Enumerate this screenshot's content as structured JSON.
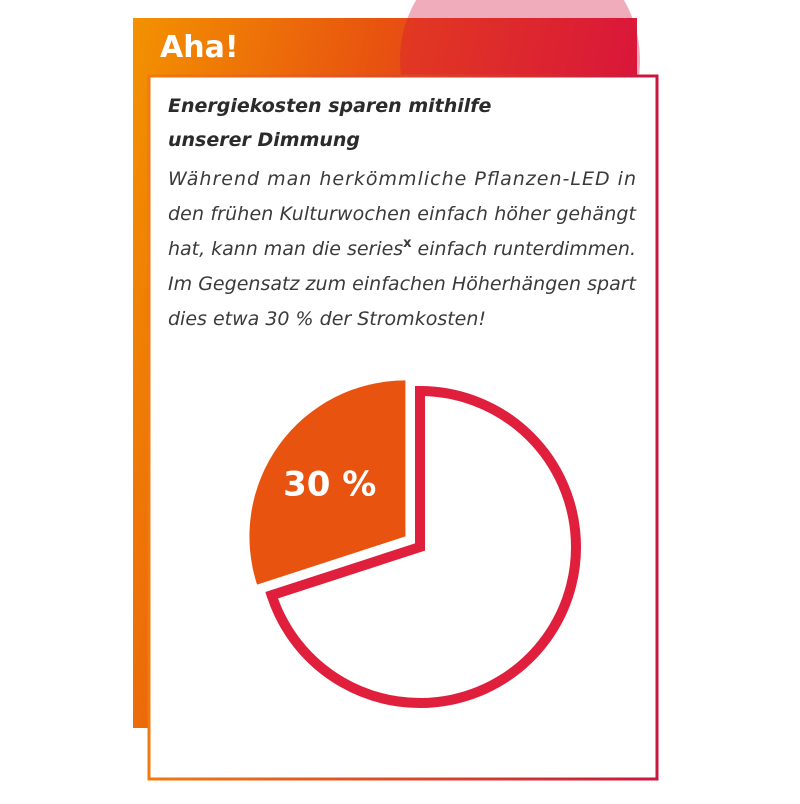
{
  "chart_data": {
    "type": "pie",
    "badge": "Aha!",
    "heading": [
      "Energiekosten sparen mithilfe",
      "unserer Dimmung"
    ],
    "body": [
      "Während man herkömmliche Pflanzen-LED in",
      "den frühen Kulturwochen einfach höher gehängt",
      {
        "before": "hat, kann man die series",
        "sup": "x",
        "after": " einfach runterdimmen."
      },
      "Im Gegensatz zum einfachen Höherhängen spart",
      "dies etwa 30 % der Stromkosten!"
    ],
    "values": [
      30,
      70
    ],
    "value_labels": [
      "30 %",
      null
    ],
    "colors": [
      "#e8540f",
      "#e01f3d"
    ]
  }
}
